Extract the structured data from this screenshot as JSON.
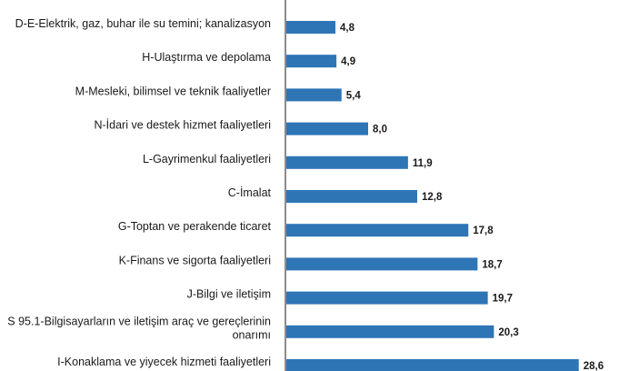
{
  "chart_data": {
    "type": "bar",
    "orientation": "horizontal",
    "categories": [
      "D-E-Elektrik, gaz, buhar ile su temini; kanalizasyon",
      "H-Ulaştırma ve depolama",
      "M-Mesleki, bilimsel ve teknik faaliyetler",
      "N-İdari ve destek hizmet faaliyetleri",
      "L-Gayrimenkul faaliyetleri",
      "C-İmalat",
      "G-Toptan ve perakende ticaret",
      "K-Finans ve sigorta faaliyetleri",
      "J-Bilgi ve iletişim",
      "S 95.1-Bilgisayarların ve iletişim araç ve gereçlerinin onarımı",
      "I-Konaklama ve yiyecek hizmeti faaliyetleri"
    ],
    "category_lines": [
      [
        "D-E-Elektrik, gaz, buhar ile su temini; kanalizasyon"
      ],
      [
        "H-Ulaştırma ve depolama"
      ],
      [
        "M-Mesleki, bilimsel ve teknik faaliyetler"
      ],
      [
        "N-İdari ve destek hizmet faaliyetleri"
      ],
      [
        "L-Gayrimenkul faaliyetleri"
      ],
      [
        "C-İmalat"
      ],
      [
        "G-Toptan ve perakende ticaret"
      ],
      [
        "K-Finans ve sigorta faaliyetleri"
      ],
      [
        "J-Bilgi ve iletişim"
      ],
      [
        "S 95.1-Bilgisayarların ve iletişim araç ve gereçlerinin",
        "onarımı"
      ],
      [
        "I-Konaklama ve yiyecek hizmeti faaliyetleri"
      ]
    ],
    "values": [
      4.8,
      4.9,
      5.4,
      8.0,
      11.9,
      12.8,
      17.8,
      18.7,
      19.7,
      20.3,
      28.6
    ],
    "value_labels": [
      "4,8",
      "4,9",
      "5,4",
      "8,0",
      "11,9",
      "12,8",
      "17,8",
      "18,7",
      "19,7",
      "20,3",
      "28,6"
    ],
    "bar_color": "#2e75b6",
    "xlim": [
      0,
      28.6
    ],
    "grid": false,
    "legend": "none"
  }
}
